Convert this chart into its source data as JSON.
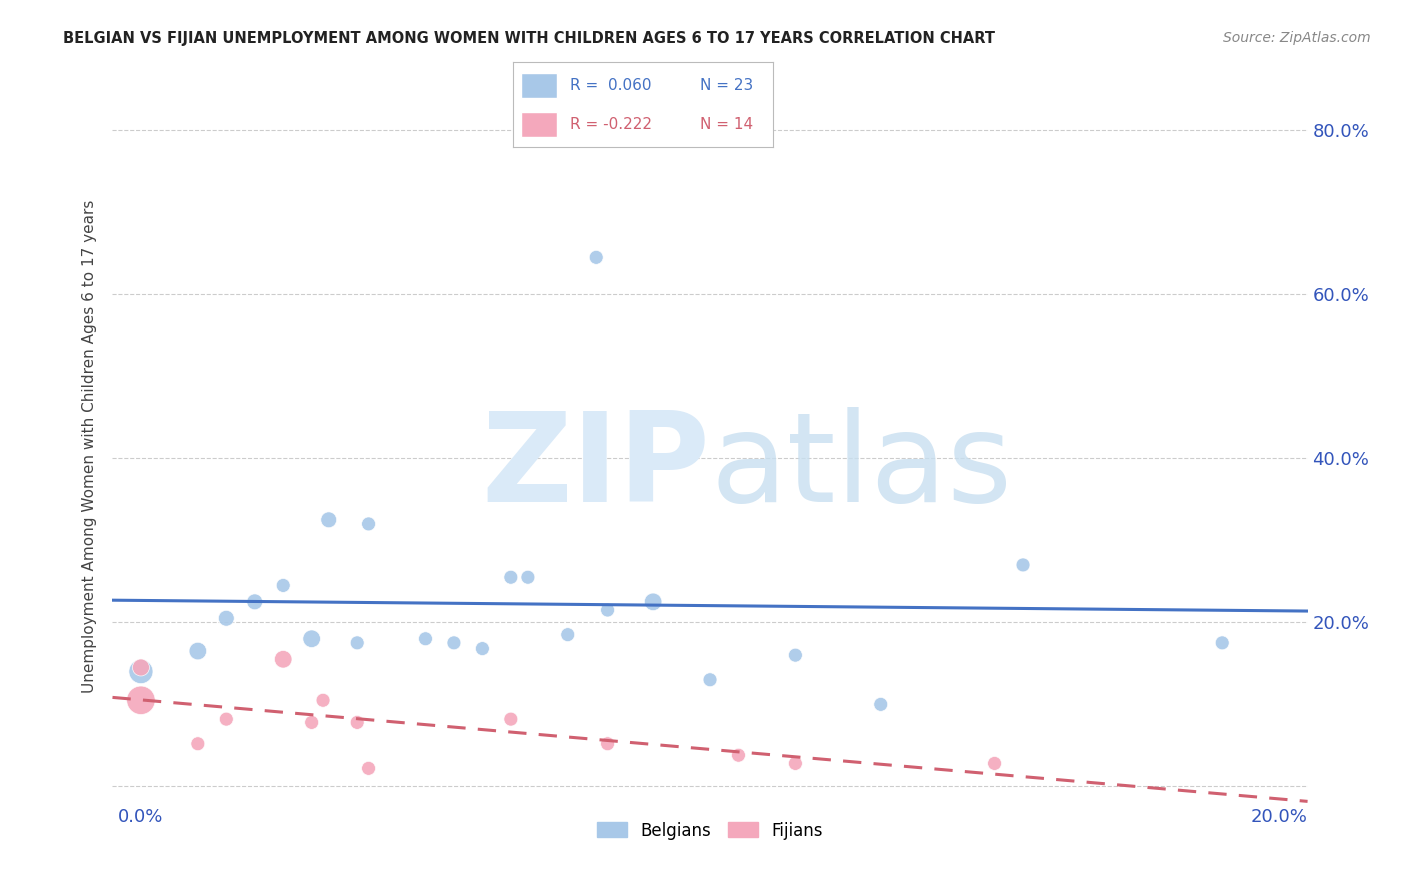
{
  "title": "BELGIAN VS FIJIAN UNEMPLOYMENT AMONG WOMEN WITH CHILDREN AGES 6 TO 17 YEARS CORRELATION CHART",
  "source": "Source: ZipAtlas.com",
  "ylabel": "Unemployment Among Women with Children Ages 6 to 17 years",
  "legend_r_belgian": "R =  0.060",
  "legend_n_belgian": "N = 23",
  "legend_r_fijian": "R = -0.222",
  "legend_n_fijian": "N = 14",
  "xlim": [
    -0.005,
    0.205
  ],
  "ylim": [
    -0.02,
    0.85
  ],
  "x_ticks": [
    0.0,
    0.05,
    0.1,
    0.15,
    0.2
  ],
  "x_tick_labels": [
    "0.0%",
    "",
    "",
    "",
    "20.0%"
  ],
  "y_ticks": [
    0.0,
    0.2,
    0.4,
    0.6,
    0.8
  ],
  "y_tick_labels": [
    "",
    "20.0%",
    "40.0%",
    "60.0%",
    "80.0%"
  ],
  "belgian_color": "#a8c8e8",
  "fijian_color": "#f4a8bc",
  "belgian_line_color": "#4472c4",
  "fijian_line_color": "#d06070",
  "belgian_scatter_x": [
    0.0,
    0.01,
    0.015,
    0.02,
    0.025,
    0.03,
    0.033,
    0.038,
    0.04,
    0.05,
    0.055,
    0.06,
    0.065,
    0.068,
    0.075,
    0.08,
    0.082,
    0.09,
    0.1,
    0.115,
    0.13,
    0.155,
    0.19
  ],
  "belgian_scatter_y": [
    0.14,
    0.165,
    0.205,
    0.225,
    0.245,
    0.18,
    0.325,
    0.175,
    0.32,
    0.18,
    0.175,
    0.168,
    0.255,
    0.255,
    0.185,
    0.645,
    0.215,
    0.225,
    0.13,
    0.16,
    0.1,
    0.27,
    0.175
  ],
  "belgian_scatter_sizes": [
    300,
    160,
    130,
    130,
    100,
    160,
    130,
    100,
    100,
    100,
    100,
    100,
    100,
    100,
    100,
    100,
    100,
    160,
    100,
    100,
    100,
    100,
    100
  ],
  "fijian_scatter_x": [
    0.0,
    0.0,
    0.01,
    0.015,
    0.025,
    0.03,
    0.032,
    0.038,
    0.04,
    0.065,
    0.082,
    0.105,
    0.115,
    0.15
  ],
  "fijian_scatter_y": [
    0.105,
    0.145,
    0.052,
    0.082,
    0.155,
    0.078,
    0.105,
    0.078,
    0.022,
    0.082,
    0.052,
    0.038,
    0.028,
    0.028
  ],
  "fijian_scatter_sizes": [
    420,
    150,
    100,
    100,
    160,
    100,
    100,
    100,
    100,
    100,
    100,
    100,
    100,
    100
  ],
  "watermark_zip": "ZIP",
  "watermark_atlas": "atlas",
  "watermark_color": "#daeaf8",
  "background_color": "#ffffff",
  "grid_color": "#cccccc"
}
